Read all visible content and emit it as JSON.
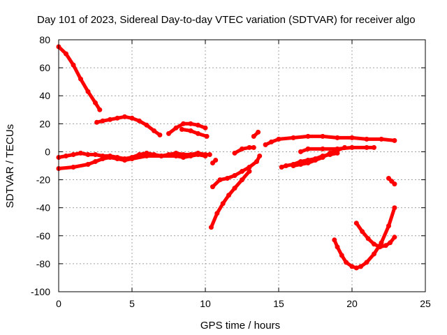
{
  "chart_data": {
    "type": "scatter",
    "title": "Day 101 of 2023, Sidereal Day-to-day VTEC variation (SDTVAR) for receiver algo",
    "xlabel": "GPS time / hours",
    "ylabel": "SDTVAR / TECUs",
    "xlim": [
      0,
      25
    ],
    "ylim": [
      -100,
      80
    ],
    "xticks": [
      0,
      5,
      10,
      15,
      20,
      25
    ],
    "yticks": [
      -100,
      -80,
      -60,
      -40,
      -20,
      0,
      20,
      40,
      60,
      80
    ],
    "grid": true,
    "legend": "none",
    "marker_color": "#ff0000",
    "series": [
      {
        "x": [
          0.0,
          0.5,
          1.0,
          1.5,
          2.0,
          2.5,
          2.8
        ],
        "y": [
          75,
          70,
          62,
          52,
          43,
          35,
          30
        ]
      },
      {
        "x": [
          2.6,
          3.0,
          3.5,
          4.0,
          4.5,
          5.0,
          5.5,
          6.0,
          6.5,
          6.9
        ],
        "y": [
          21,
          22,
          23,
          24,
          25,
          24,
          22,
          19,
          15,
          12
        ]
      },
      {
        "x": [
          7.5,
          8.0,
          8.5,
          9.0,
          9.5,
          10.0
        ],
        "y": [
          13,
          17,
          20,
          20,
          19,
          17
        ]
      },
      {
        "x": [
          8.4,
          9.0,
          9.5,
          10.1
        ],
        "y": [
          16,
          15,
          13,
          11
        ]
      },
      {
        "x": [
          0.0,
          0.5,
          1.0,
          1.5,
          2.0,
          2.5,
          3.0,
          3.5,
          4.0,
          4.5,
          5.0,
          5.5,
          6.0,
          6.5,
          7.0,
          7.5,
          8.0,
          8.5,
          9.0,
          9.5,
          10.0,
          10.3
        ],
        "y": [
          -4,
          -3,
          -2,
          -1,
          -2,
          -2,
          -3,
          -3,
          -4,
          -5,
          -4,
          -2,
          -1,
          -2,
          -3,
          -2,
          -1,
          -2,
          -2,
          -1,
          -2,
          -2
        ]
      },
      {
        "x": [
          0.0,
          1.0,
          2.0,
          2.5,
          3.0,
          3.5,
          4.0,
          4.5,
          5.0,
          6.0,
          7.0,
          8.0,
          8.5,
          9.0,
          9.5,
          10.0
        ],
        "y": [
          -12,
          -11,
          -9,
          -7,
          -5,
          -4,
          -5,
          -6,
          -5,
          -3,
          -3,
          -3,
          -4,
          -3,
          -2,
          -3
        ]
      },
      {
        "x": [
          10.5,
          10.7
        ],
        "y": [
          -8,
          -6
        ]
      },
      {
        "x": [
          10.5,
          11.0,
          11.5,
          12.0,
          12.5,
          13.0,
          13.5,
          13.7
        ],
        "y": [
          -25,
          -20,
          -19,
          -17,
          -14,
          -11,
          -7,
          -3
        ]
      },
      {
        "x": [
          10.4,
          10.8,
          11.2,
          11.6,
          12.0,
          12.5,
          13.0
        ],
        "y": [
          -54,
          -44,
          -37,
          -31,
          -26,
          -20,
          -14
        ]
      },
      {
        "x": [
          12.0,
          12.5,
          13.0,
          13.3
        ],
        "y": [
          -1,
          2,
          3,
          3
        ]
      },
      {
        "x": [
          13.3,
          13.6
        ],
        "y": [
          11,
          14
        ]
      },
      {
        "x": [
          14.1,
          14.5,
          15.0,
          16.0,
          17.0,
          18.0,
          19.0,
          20.0,
          21.0,
          22.0,
          22.9
        ],
        "y": [
          5,
          7,
          9,
          10,
          11,
          11,
          10,
          10,
          9,
          9,
          8
        ]
      },
      {
        "x": [
          15.2,
          15.5,
          16.0,
          16.5,
          17.0,
          17.5,
          18.0,
          18.5,
          19.0
        ],
        "y": [
          -11,
          -10,
          -9,
          -7,
          -6,
          -5,
          -3,
          -2,
          -1
        ]
      },
      {
        "x": [
          16.5,
          17.0,
          18.0,
          19.0,
          20.0,
          21.0,
          21.5
        ],
        "y": [
          0,
          2,
          2,
          2,
          3,
          3,
          3
        ]
      },
      {
        "x": [
          16.0,
          16.5,
          17.0,
          17.5,
          18.0,
          18.5,
          19.0,
          19.5
        ],
        "y": [
          -10,
          -9,
          -8,
          -6,
          -4,
          -1,
          1,
          3
        ]
      },
      {
        "x": [
          18.8,
          19.0,
          19.3,
          19.6,
          20.0,
          20.3,
          20.6,
          21.0,
          21.5,
          22.0,
          22.5,
          22.9
        ],
        "y": [
          -63,
          -68,
          -74,
          -79,
          -82,
          -83,
          -82,
          -79,
          -73,
          -65,
          -53,
          -40
        ]
      },
      {
        "x": [
          20.3,
          20.7,
          21.1,
          21.5,
          21.9,
          22.3,
          22.6,
          22.9
        ],
        "y": [
          -51,
          -57,
          -62,
          -66,
          -68,
          -67,
          -65,
          -61
        ]
      },
      {
        "x": [
          22.5,
          22.7,
          22.9
        ],
        "y": [
          -19,
          -21,
          -23
        ]
      }
    ]
  }
}
